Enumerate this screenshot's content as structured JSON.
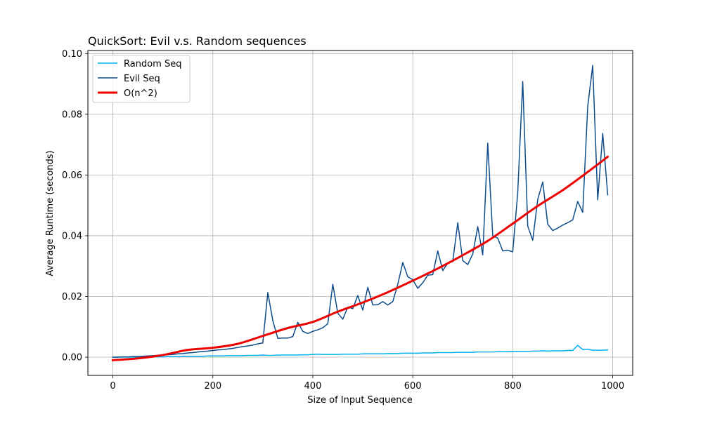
{
  "chart_data": {
    "type": "line",
    "title": "QuickSort: Evil v.s. Random sequences",
    "xlabel": "Size of Input Sequence",
    "ylabel": "Average Runtime (seconds)",
    "xlim": [
      -50,
      1040
    ],
    "ylim": [
      -0.006,
      0.101
    ],
    "xticks": [
      0,
      200,
      400,
      600,
      800,
      1000
    ],
    "xtick_labels": [
      "0",
      "200",
      "400",
      "600",
      "800",
      "1000"
    ],
    "yticks": [
      0.0,
      0.02,
      0.04,
      0.06,
      0.08,
      0.1
    ],
    "ytick_labels": [
      "0.00",
      "0.02",
      "0.04",
      "0.06",
      "0.08",
      "0.10"
    ],
    "grid": true,
    "legend_position": "top-left",
    "series": [
      {
        "name": "Random Seq",
        "color": "#00b0f0",
        "x": [
          0,
          10,
          20,
          30,
          40,
          50,
          60,
          70,
          80,
          90,
          100,
          110,
          120,
          130,
          140,
          150,
          160,
          170,
          180,
          190,
          200,
          210,
          220,
          230,
          240,
          250,
          260,
          270,
          280,
          290,
          300,
          310,
          320,
          330,
          340,
          350,
          360,
          370,
          380,
          390,
          400,
          410,
          420,
          430,
          440,
          450,
          460,
          470,
          480,
          490,
          500,
          510,
          520,
          530,
          540,
          550,
          560,
          570,
          580,
          590,
          600,
          610,
          620,
          630,
          640,
          650,
          660,
          670,
          680,
          690,
          700,
          710,
          720,
          730,
          740,
          750,
          760,
          770,
          780,
          790,
          800,
          810,
          820,
          830,
          840,
          850,
          860,
          870,
          880,
          890,
          900,
          910,
          920,
          930,
          940,
          950,
          960,
          970,
          980,
          990
        ],
        "y": [
          0.0,
          0.0,
          0.0,
          0.0,
          0.0,
          0.0,
          0.0,
          0.0001,
          0.0001,
          0.0001,
          0.0001,
          0.0002,
          0.0002,
          0.0002,
          0.0003,
          0.0003,
          0.0003,
          0.0003,
          0.0003,
          0.0004,
          0.0004,
          0.0004,
          0.0004,
          0.0005,
          0.0005,
          0.0005,
          0.0005,
          0.0006,
          0.0006,
          0.0006,
          0.0007,
          0.0006,
          0.0006,
          0.0007,
          0.0007,
          0.0007,
          0.0007,
          0.0007,
          0.0008,
          0.0008,
          0.0009,
          0.001,
          0.0009,
          0.0009,
          0.0009,
          0.0009,
          0.001,
          0.001,
          0.001,
          0.001,
          0.0011,
          0.0011,
          0.0011,
          0.0011,
          0.0011,
          0.0012,
          0.0012,
          0.0012,
          0.0013,
          0.0013,
          0.0013,
          0.0013,
          0.0014,
          0.0014,
          0.0014,
          0.0015,
          0.0015,
          0.0015,
          0.0015,
          0.0016,
          0.0016,
          0.0016,
          0.0016,
          0.0017,
          0.0017,
          0.0017,
          0.0017,
          0.0018,
          0.0018,
          0.0018,
          0.0019,
          0.0019,
          0.0019,
          0.0019,
          0.002,
          0.002,
          0.0021,
          0.002,
          0.0021,
          0.0021,
          0.0021,
          0.0022,
          0.0022,
          0.0039,
          0.0025,
          0.0026,
          0.0023,
          0.0023,
          0.0023,
          0.0024
        ]
      },
      {
        "name": "Evil Seq",
        "color": "#0f4d8a",
        "x": [
          0,
          10,
          20,
          30,
          40,
          50,
          60,
          70,
          80,
          90,
          100,
          110,
          120,
          130,
          140,
          150,
          160,
          170,
          180,
          190,
          200,
          210,
          220,
          230,
          240,
          250,
          260,
          270,
          280,
          290,
          300,
          310,
          320,
          330,
          340,
          350,
          360,
          370,
          380,
          390,
          400,
          410,
          420,
          430,
          440,
          450,
          460,
          470,
          480,
          490,
          500,
          510,
          520,
          530,
          540,
          550,
          560,
          570,
          580,
          590,
          600,
          610,
          620,
          630,
          640,
          650,
          660,
          670,
          680,
          690,
          700,
          710,
          720,
          730,
          740,
          750,
          760,
          770,
          780,
          790,
          800,
          810,
          820,
          830,
          840,
          850,
          860,
          870,
          880,
          890,
          900,
          910,
          920,
          930,
          940,
          950,
          960,
          970,
          980,
          990
        ],
        "y": [
          0.0,
          0.0,
          0.0001,
          0.0001,
          0.0002,
          0.0002,
          0.0003,
          0.0004,
          0.0005,
          0.0006,
          0.0007,
          0.0008,
          0.0009,
          0.0011,
          0.0012,
          0.0014,
          0.0015,
          0.0017,
          0.0019,
          0.002,
          0.0022,
          0.0024,
          0.0025,
          0.0027,
          0.0029,
          0.0032,
          0.0035,
          0.0037,
          0.004,
          0.0044,
          0.0047,
          0.0213,
          0.012,
          0.0062,
          0.0063,
          0.0063,
          0.0068,
          0.0115,
          0.0085,
          0.0078,
          0.0085,
          0.009,
          0.0097,
          0.011,
          0.024,
          0.0145,
          0.0125,
          0.0165,
          0.016,
          0.0203,
          0.0155,
          0.023,
          0.0172,
          0.0173,
          0.0183,
          0.0172,
          0.0183,
          0.024,
          0.0312,
          0.0265,
          0.0255,
          0.0227,
          0.0245,
          0.027,
          0.0272,
          0.035,
          0.0285,
          0.031,
          0.0315,
          0.0443,
          0.0318,
          0.0305,
          0.034,
          0.043,
          0.0337,
          0.0705,
          0.04,
          0.0392,
          0.035,
          0.0352,
          0.0347,
          0.0542,
          0.0908,
          0.0432,
          0.0385,
          0.052,
          0.0577,
          0.0438,
          0.0417,
          0.0425,
          0.0435,
          0.0443,
          0.0452,
          0.0513,
          0.0477,
          0.0826,
          0.0961,
          0.0518,
          0.0737,
          0.0535
        ]
      },
      {
        "name": "O(n^2)",
        "color": "#ee0000",
        "x": [
          0,
          50,
          100,
          150,
          200,
          250,
          300,
          350,
          400,
          450,
          500,
          550,
          600,
          650,
          700,
          750,
          800,
          850,
          900,
          950,
          990
        ],
        "y": [
          -0.001,
          -0.0004,
          0.0007,
          0.0024,
          0.0031,
          0.0044,
          0.007,
          0.0096,
          0.0116,
          0.015,
          0.018,
          0.0214,
          0.0252,
          0.0292,
          0.0336,
          0.0383,
          0.044,
          0.0498,
          0.055,
          0.061,
          0.066
        ]
      }
    ]
  }
}
